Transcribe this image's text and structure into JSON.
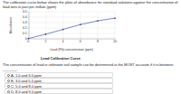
{
  "intro": "The calibration curve below shows the plots of absorbance for standard solutions against the concentration of lead ions in part per million (ppm)",
  "chart_data": {
    "type": "line",
    "title": "Lead Calibration Curve",
    "x_label": "Lead (Pb) concentration (ppm)",
    "y_label": "Absorbance",
    "x": [
      0,
      2,
      4,
      6,
      8,
      10
    ],
    "values": [
      0,
      0.08,
      0.17,
      0.26,
      0.33,
      0.38
    ],
    "color": "#1f3a93",
    "marker": "circle",
    "xlim": [
      0,
      10
    ],
    "xticks": [
      0,
      2,
      4,
      6,
      8,
      10
    ],
    "ylim": [
      0,
      0.5
    ],
    "yticks": [
      0,
      0.1,
      0.2,
      0.3,
      0.4,
      0.5
    ],
    "grid": true
  },
  "question": "The concentration of lead in unknown soil sample can be determined at the MOST accurate if it is between _______.",
  "options": [
    {
      "letter": "A.",
      "text": "1.0 and 3.0 ppm"
    },
    {
      "letter": "B.",
      "text": "3.0 and 5.0 ppm"
    },
    {
      "letter": "C.",
      "text": "5.0 and 8.0 ppm"
    },
    {
      "letter": "D.",
      "text": "8.0 and 9.0 ppm"
    }
  ]
}
